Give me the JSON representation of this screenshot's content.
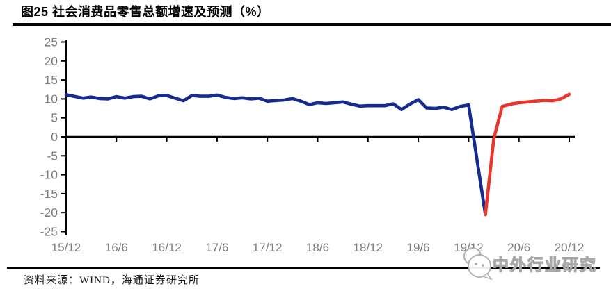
{
  "header": {
    "title": "图25 社会消费品零售总额增速及预测（%）"
  },
  "footer": {
    "source_label": "资料来源：WIND，海通证券研究所"
  },
  "watermark": {
    "text": "中外行业研究",
    "icon": "wechat-bubbles-icon"
  },
  "chart_data": {
    "type": "line",
    "title": "社会消费品零售总额增速及预测（%）",
    "figure_no": "图25",
    "ylim": [
      -25,
      25
    ],
    "y_ticks": [
      25,
      20,
      15,
      10,
      5,
      0,
      -5,
      -10,
      -15,
      -20,
      -25
    ],
    "x_ticklabels": [
      "15/12",
      "16/6",
      "16/12",
      "17/6",
      "17/12",
      "18/6",
      "18/12",
      "19/6",
      "19/12",
      "20/6",
      "20/12"
    ],
    "x_months_per_tick": 6,
    "grid": false,
    "legend": "none",
    "axis_color": "#000000",
    "tick_label_color": "#7d7d7d",
    "series": [
      {
        "id": "actual",
        "color": "#172a8d",
        "points": [
          [
            "15/12",
            11.1
          ],
          [
            "16/2",
            10.2
          ],
          [
            "16/3",
            10.5
          ],
          [
            "16/4",
            10.1
          ],
          [
            "16/5",
            10.0
          ],
          [
            "16/6",
            10.6
          ],
          [
            "16/7",
            10.2
          ],
          [
            "16/8",
            10.6
          ],
          [
            "16/9",
            10.7
          ],
          [
            "16/10",
            10.0
          ],
          [
            "16/11",
            10.8
          ],
          [
            "16/12",
            10.9
          ],
          [
            "17/2",
            9.5
          ],
          [
            "17/3",
            10.9
          ],
          [
            "17/4",
            10.7
          ],
          [
            "17/5",
            10.7
          ],
          [
            "17/6",
            11.0
          ],
          [
            "17/7",
            10.4
          ],
          [
            "17/8",
            10.1
          ],
          [
            "17/9",
            10.3
          ],
          [
            "17/10",
            10.0
          ],
          [
            "17/11",
            10.2
          ],
          [
            "17/12",
            9.4
          ],
          [
            "18/2",
            9.7
          ],
          [
            "18/3",
            10.1
          ],
          [
            "18/4",
            9.4
          ],
          [
            "18/5",
            8.5
          ],
          [
            "18/6",
            9.0
          ],
          [
            "18/7",
            8.8
          ],
          [
            "18/8",
            9.0
          ],
          [
            "18/9",
            9.2
          ],
          [
            "18/10",
            8.6
          ],
          [
            "18/11",
            8.1
          ],
          [
            "18/12",
            8.2
          ],
          [
            "19/2",
            8.2
          ],
          [
            "19/3",
            8.7
          ],
          [
            "19/4",
            7.2
          ],
          [
            "19/5",
            8.6
          ],
          [
            "19/6",
            9.8
          ],
          [
            "19/7",
            7.6
          ],
          [
            "19/8",
            7.5
          ],
          [
            "19/9",
            7.8
          ],
          [
            "19/10",
            7.2
          ],
          [
            "19/11",
            8.0
          ],
          [
            "19/12",
            8.4
          ],
          [
            "20/2",
            -20.5
          ]
        ]
      },
      {
        "id": "forecast",
        "color": "#e8362d",
        "points": [
          [
            "20/2",
            -20.5
          ],
          [
            "20/3",
            -0.5
          ],
          [
            "20/4",
            8.0
          ],
          [
            "20/5",
            8.6
          ],
          [
            "20/6",
            9.0
          ],
          [
            "20/7",
            9.2
          ],
          [
            "20/8",
            9.4
          ],
          [
            "20/9",
            9.6
          ],
          [
            "20/10",
            9.5
          ],
          [
            "20/11",
            10.0
          ],
          [
            "20/12",
            11.2
          ]
        ]
      }
    ]
  }
}
